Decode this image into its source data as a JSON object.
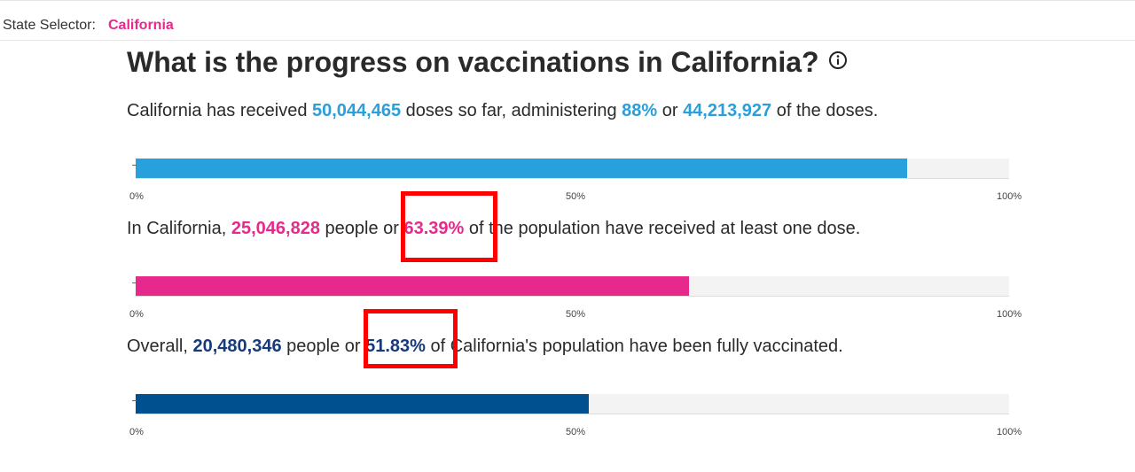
{
  "topbar": {
    "label": "State Selector:",
    "value": "California"
  },
  "heading": {
    "text": "What is the progress on vaccinations in California?",
    "info_icon": "info-icon"
  },
  "doses": {
    "t1": "California has received ",
    "received": "50,044,465",
    "t2": " doses so far, administering ",
    "percent": "88%",
    "t3": " or ",
    "administered": "44,213,927",
    "t4": " of the doses.",
    "progress": 0.8835,
    "color": "#27a0dc"
  },
  "one_dose": {
    "t1": "In California, ",
    "people": "25,046,828",
    "t2": " people or ",
    "percent": "63.39%",
    "t3": " of the population have received at least one dose.",
    "progress": 0.6339,
    "color": "#e8298c"
  },
  "full": {
    "t1": "Overall, ",
    "people": "20,480,346",
    "t2": " people or ",
    "percent": "51.83%",
    "t3": " of California's population have been fully vaccinated.",
    "progress": 0.5183,
    "color": "#004f8f"
  },
  "axis": {
    "t0": "0%",
    "t50": "50%",
    "t100": "100%"
  },
  "annotations": {
    "highlight_color": "#ff0000"
  }
}
